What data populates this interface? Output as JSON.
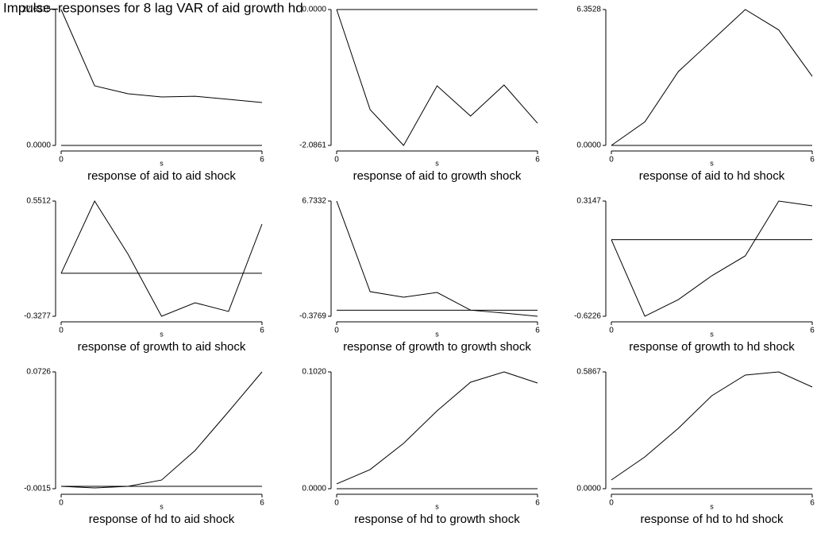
{
  "title": "Impulse–responses for 8 lag VAR of aid growth hd",
  "chart_data": [
    {
      "type": "line",
      "title": "response of aid to aid shock",
      "xlabel": "s",
      "x": [
        0,
        1,
        2,
        3,
        4,
        5,
        6
      ],
      "values": [
        27.6315,
        12.12,
        10.5,
        9.86,
        10.0,
        9.37,
        8.73
      ],
      "ylim": [
        0,
        27.6315
      ],
      "yticks": [
        {
          "value": 0,
          "label": "0.0000"
        },
        {
          "value": 27.6315,
          "label": "27.6315"
        }
      ],
      "xticks": [
        0,
        6
      ],
      "xlim": [
        0,
        6
      ],
      "hline": 0,
      "color": "#000000"
    },
    {
      "type": "line",
      "title": "response of aid to growth shock",
      "xlabel": "s",
      "x": [
        0,
        1,
        2,
        3,
        4,
        5,
        6
      ],
      "values": [
        0,
        -1.537,
        -2.0861,
        -1.171,
        -1.635,
        -1.159,
        -1.745
      ],
      "ylim": [
        -2.0861,
        0
      ],
      "yticks": [
        {
          "value": -2.0861,
          "label": "-2.0861"
        },
        {
          "value": 0,
          "label": "0.0000"
        }
      ],
      "xticks": [
        0,
        6
      ],
      "xlim": [
        0,
        6
      ],
      "hline": 0,
      "color": "#000000"
    },
    {
      "type": "line",
      "title": "response of aid to hd shock",
      "xlabel": "s",
      "x": [
        0,
        1,
        2,
        3,
        4,
        5,
        6
      ],
      "values": [
        0,
        1.1,
        3.45,
        4.9,
        6.3528,
        5.4,
        3.23
      ],
      "ylim": [
        0,
        6.3528
      ],
      "yticks": [
        {
          "value": 0,
          "label": "0.0000"
        },
        {
          "value": 6.3528,
          "label": "6.3528"
        }
      ],
      "xticks": [
        0,
        6
      ],
      "xlim": [
        0,
        6
      ],
      "hline": 0,
      "color": "#000000"
    },
    {
      "type": "line",
      "title": "response of growth to aid shock",
      "xlabel": "s",
      "x": [
        0,
        1,
        2,
        3,
        4,
        5,
        6
      ],
      "values": [
        0,
        0.5512,
        0.1451,
        -0.3277,
        -0.2247,
        -0.291,
        0.3754
      ],
      "ylim": [
        -0.3277,
        0.5512
      ],
      "yticks": [
        {
          "value": -0.3277,
          "label": "-0.3277"
        },
        {
          "value": 0.5512,
          "label": "0.5512"
        }
      ],
      "xticks": [
        0,
        6
      ],
      "xlim": [
        0,
        6
      ],
      "hline": 0,
      "color": "#000000"
    },
    {
      "type": "line",
      "title": "response of growth to growth shock",
      "xlabel": "s",
      "x": [
        0,
        1,
        2,
        3,
        4,
        5,
        6
      ],
      "values": [
        6.7332,
        1.143,
        0.8,
        1.094,
        0,
        -0.181,
        -0.3769
      ],
      "ylim": [
        -0.3769,
        6.7332
      ],
      "yticks": [
        {
          "value": -0.3769,
          "label": "-0.3769"
        },
        {
          "value": 6.7332,
          "label": "6.7332"
        }
      ],
      "xticks": [
        0,
        6
      ],
      "xlim": [
        0,
        6
      ],
      "hline": 0,
      "color": "#000000"
    },
    {
      "type": "line",
      "title": "response of growth to hd shock",
      "xlabel": "s",
      "x": [
        0,
        1,
        2,
        3,
        4,
        5,
        6
      ],
      "values": [
        0,
        -0.6226,
        -0.487,
        -0.293,
        -0.131,
        0.3147,
        0.276
      ],
      "ylim": [
        -0.6226,
        0.3147
      ],
      "yticks": [
        {
          "value": -0.6226,
          "label": "-0.6226"
        },
        {
          "value": 0.3147,
          "label": "0.3147"
        }
      ],
      "xticks": [
        0,
        6
      ],
      "xlim": [
        0,
        6
      ],
      "hline": 0,
      "color": "#000000"
    },
    {
      "type": "line",
      "title": "response of hd to aid shock",
      "xlabel": "s",
      "x": [
        0,
        1,
        2,
        3,
        4,
        5,
        6
      ],
      "values": [
        0,
        -0.001,
        0,
        0.004,
        0.0227,
        0.0474,
        0.0726
      ],
      "ylim": [
        -0.0015,
        0.0726
      ],
      "yticks": [
        {
          "value": -0.0015,
          "label": "-0.0015"
        },
        {
          "value": 0.0726,
          "label": "0.0726"
        }
      ],
      "xticks": [
        0,
        6
      ],
      "xlim": [
        0,
        6
      ],
      "hline": 0,
      "color": "#000000"
    },
    {
      "type": "line",
      "title": "response of hd to growth shock",
      "xlabel": "s",
      "x": [
        0,
        1,
        2,
        3,
        4,
        5,
        6
      ],
      "values": [
        0.0042,
        0.0167,
        0.0396,
        0.068,
        0.093,
        0.102,
        0.0923
      ],
      "ylim": [
        0,
        0.102
      ],
      "yticks": [
        {
          "value": 0,
          "label": "0.0000"
        },
        {
          "value": 0.102,
          "label": "0.1020"
        }
      ],
      "xticks": [
        0,
        6
      ],
      "xlim": [
        0,
        6
      ],
      "hline": 0,
      "color": "#000000"
    },
    {
      "type": "line",
      "title": "response of hd to hd shock",
      "xlabel": "s",
      "x": [
        0,
        1,
        2,
        3,
        4,
        5,
        6
      ],
      "values": [
        0.0439,
        0.1597,
        0.3034,
        0.467,
        0.5708,
        0.5867,
        0.5109
      ],
      "ylim": [
        0,
        0.5867
      ],
      "yticks": [
        {
          "value": 0,
          "label": "0.0000"
        },
        {
          "value": 0.5867,
          "label": "0.5867"
        }
      ],
      "xticks": [
        0,
        6
      ],
      "xlim": [
        0,
        6
      ],
      "hline": 0,
      "color": "#000000"
    }
  ]
}
